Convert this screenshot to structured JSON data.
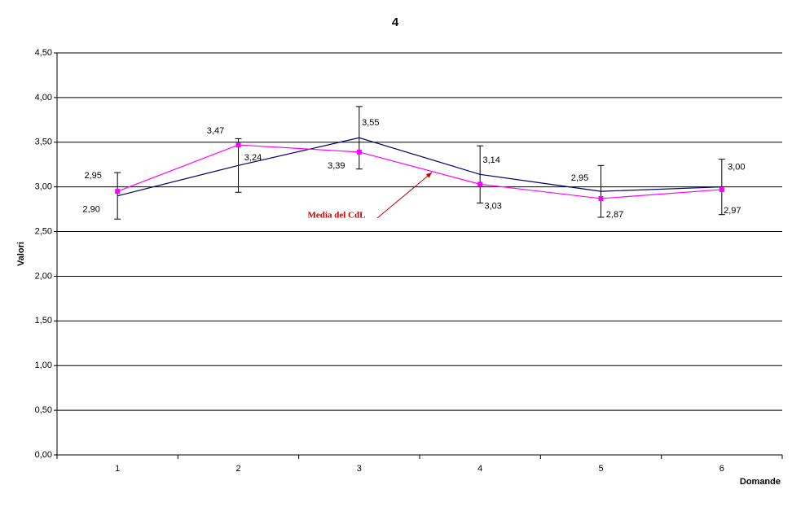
{
  "chart_data": {
    "type": "line",
    "title": "4",
    "x_label": "Domande",
    "y_label": "Valori",
    "categories": [
      "1",
      "2",
      "3",
      "4",
      "5",
      "6"
    ],
    "ylim": [
      0,
      4.5
    ],
    "yticks": [
      {
        "value": 0,
        "label": "0,00"
      },
      {
        "value": 0.5,
        "label": "0,50"
      },
      {
        "value": 1,
        "label": "1,00"
      },
      {
        "value": 1.5,
        "label": "1,50"
      },
      {
        "value": 2,
        "label": "2,00"
      },
      {
        "value": 2.5,
        "label": "2,50"
      },
      {
        "value": 3,
        "label": "3,00"
      },
      {
        "value": 3.5,
        "label": "3,50"
      },
      {
        "value": 4,
        "label": "4,00"
      },
      {
        "value": 4.5,
        "label": "4,50"
      }
    ],
    "grid": true,
    "series": [
      {
        "color": "#000066",
        "values": [
          2.9,
          3.24,
          3.55,
          3.14,
          2.95,
          3.0
        ],
        "value_labels": [
          "2,90",
          "3,24",
          "3,55",
          "3,14",
          "2,95",
          "3,00"
        ],
        "errors": [
          0.26,
          0.3,
          0.35,
          0.32,
          0.29,
          0.31
        ]
      },
      {
        "color": "#ff00ff",
        "values": [
          2.95,
          3.47,
          3.39,
          3.03,
          2.87,
          2.97
        ],
        "value_labels": [
          "2,95",
          "3,47",
          "3,39",
          "3,03",
          "2,87",
          "2,97"
        ]
      }
    ],
    "annotation": "Media del CdL"
  }
}
